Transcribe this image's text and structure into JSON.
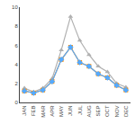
{
  "chart_data": {
    "type": "line",
    "categories": [
      "JAN",
      "FEB",
      "MAR",
      "APR",
      "MAY",
      "JUN",
      "JUL",
      "AUG",
      "SEP",
      "OCT",
      "NOV",
      "DEC"
    ],
    "series": [
      {
        "color": "#b0b0b0",
        "marker": "triangle",
        "values": [
          1.5,
          1.1,
          1.5,
          2.5,
          5.5,
          9.0,
          6.5,
          5.0,
          3.8,
          3.2,
          2.0,
          1.6
        ]
      },
      {
        "color": "#ff8c00",
        "marker": "square",
        "values": [
          1.2,
          1.0,
          1.3,
          2.2,
          4.5,
          5.8,
          4.2,
          3.8,
          3.0,
          2.6,
          1.8,
          1.3
        ]
      },
      {
        "color": "#55aaff",
        "marker": "diamond",
        "values": [
          1.2,
          1.0,
          1.3,
          2.2,
          4.5,
          5.8,
          4.2,
          3.8,
          3.0,
          2.6,
          1.8,
          1.3
        ]
      }
    ],
    "ylim": [
      0,
      10
    ],
    "yticks": [
      0,
      2,
      4,
      6,
      8,
      10
    ],
    "grid": false
  }
}
